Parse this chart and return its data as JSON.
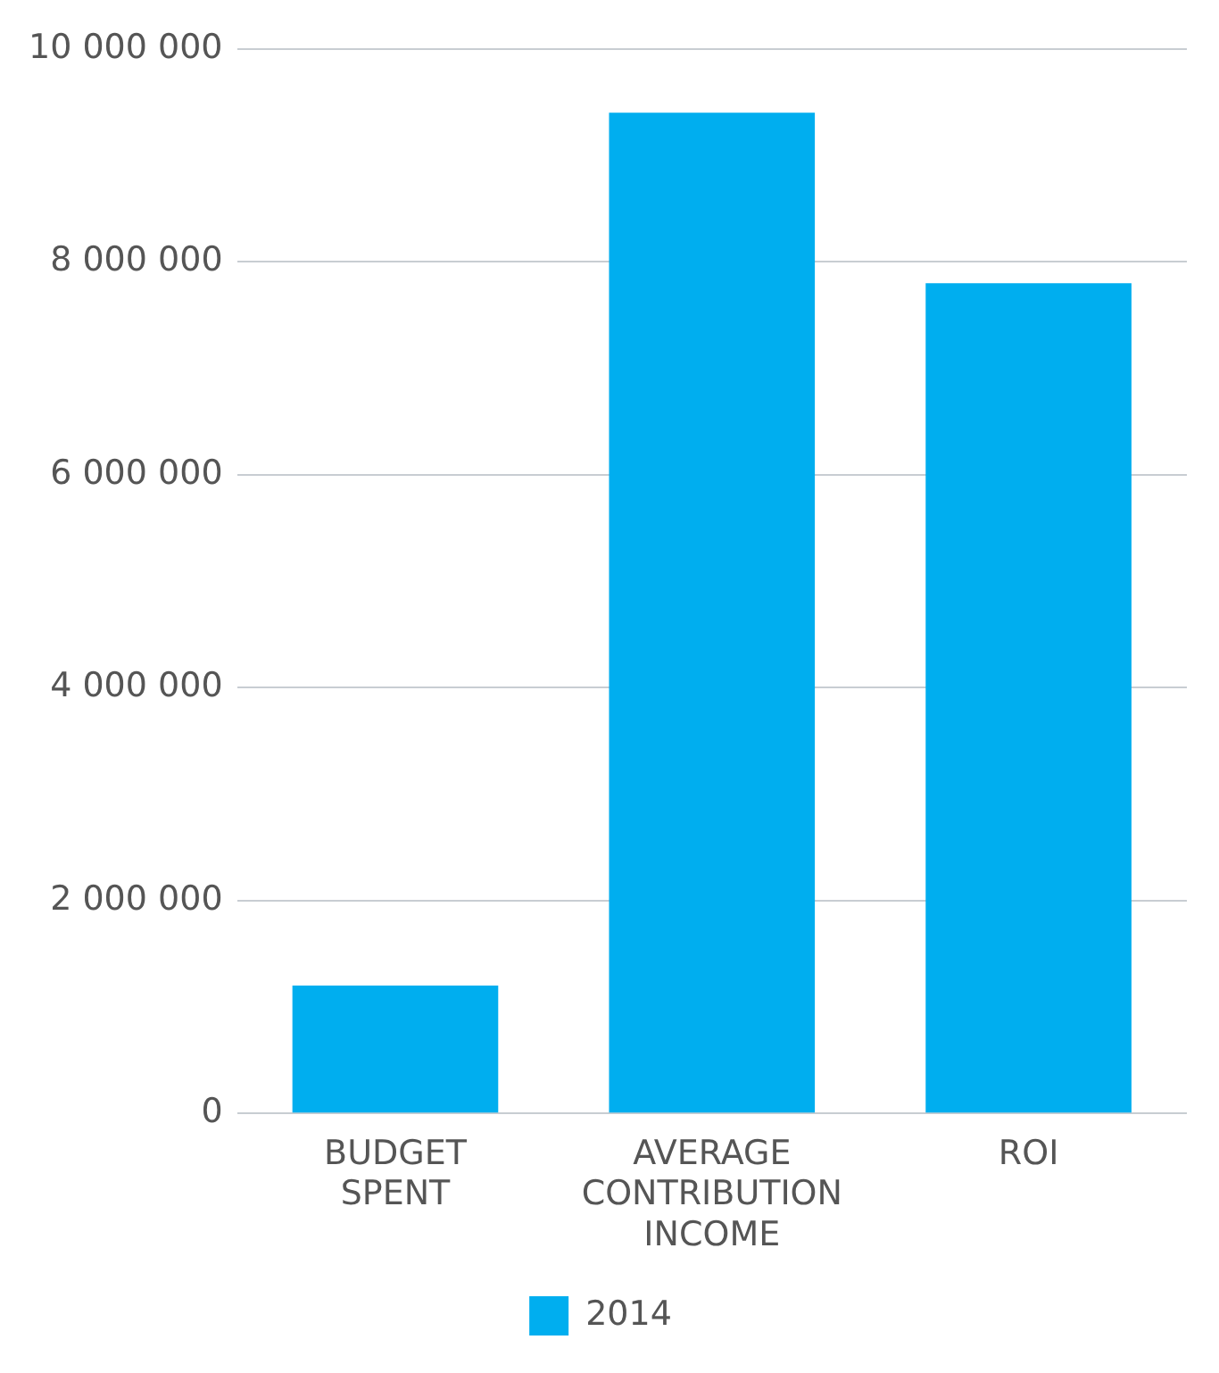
{
  "chart_data": {
    "type": "bar",
    "categories": [
      "BUDGET SPENT",
      "AVERAGE CONTRIBUTION INCOME",
      "ROI"
    ],
    "series": [
      {
        "name": "2014",
        "color": "#00aeef",
        "values": [
          1200000,
          9400000,
          7800000
        ]
      }
    ],
    "ylim": [
      0,
      10000000
    ],
    "yticks": [
      0,
      {
        "value": 2000000,
        "label": "2 000 000"
      },
      {
        "value": 4000000,
        "label": "4 000 000"
      },
      {
        "value": 6000000,
        "label": "6 000 000"
      },
      {
        "value": 8000000,
        "label": "8 000 000"
      },
      {
        "value": 10000000,
        "label": "10 000 000"
      }
    ],
    "grid": "y",
    "legend": "bottom"
  }
}
